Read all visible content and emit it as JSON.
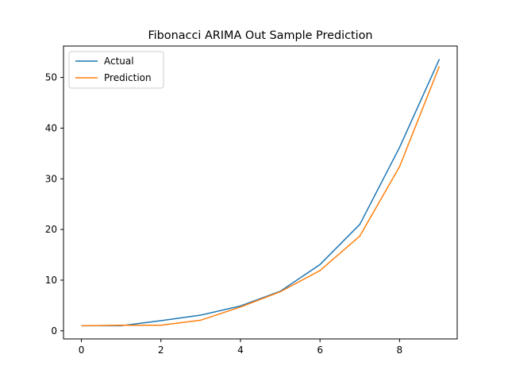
{
  "chart_data": {
    "type": "line",
    "title": "Fibonacci ARIMA Out Sample Prediction",
    "xlabel": "",
    "ylabel": "",
    "x": [
      0,
      1,
      2,
      3,
      4,
      5,
      6,
      7,
      8,
      9
    ],
    "series": [
      {
        "name": "Actual",
        "color": "#1f77b4",
        "values": [
          1,
          1,
          2,
          3.1,
          4.9,
          7.8,
          13.1,
          21.0,
          36.2,
          53.6
        ]
      },
      {
        "name": "Prediction",
        "color": "#ff7f0e",
        "values": [
          1,
          1.1,
          1.1,
          2.1,
          4.7,
          7.7,
          11.9,
          18.7,
          32.4,
          52.2
        ]
      }
    ],
    "xlim": [
      -0.45,
      9.45
    ],
    "ylim": [
      -1.6,
      56.2
    ],
    "xticks": [
      0,
      2,
      4,
      6,
      8
    ],
    "yticks": [
      0,
      10,
      20,
      30,
      40,
      50
    ],
    "grid": false,
    "legend_position": "top-left"
  }
}
